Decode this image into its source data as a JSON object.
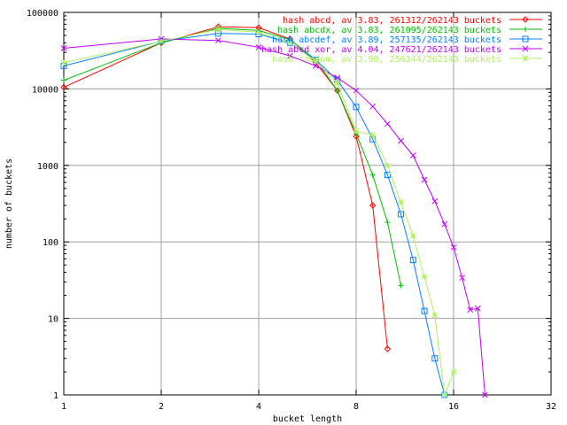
{
  "chart_data": {
    "type": "line",
    "xlabel": "bucket length",
    "ylabel": "number of buckets",
    "x_scale": "log2",
    "y_scale": "log10",
    "xlim": [
      1,
      32
    ],
    "ylim": [
      1,
      100000
    ],
    "x_ticks": [
      {
        "value": 1,
        "label": "1"
      },
      {
        "value": 2,
        "label": "2"
      },
      {
        "value": 4,
        "label": "4"
      },
      {
        "value": 8,
        "label": "8"
      },
      {
        "value": 16,
        "label": "16"
      },
      {
        "value": 32,
        "label": "32"
      }
    ],
    "y_ticks": [
      {
        "value": 1,
        "label": "1"
      },
      {
        "value": 10,
        "label": "10"
      },
      {
        "value": 100,
        "label": "100"
      },
      {
        "value": 1000,
        "label": "1000"
      },
      {
        "value": 10000,
        "label": "10000"
      },
      {
        "value": 100000,
        "label": "100000"
      }
    ],
    "grid": true,
    "legend_position": "top-right",
    "series": [
      {
        "name": "hash abcd, av 3.83, 261312/262143 buckets",
        "color": "#ff0000",
        "marker": "diamond",
        "x": [
          1,
          2,
          3,
          4,
          5,
          6,
          7,
          8,
          9,
          10
        ],
        "y": [
          10500,
          40000,
          65000,
          63000,
          45000,
          22000,
          9500,
          2400,
          300,
          4
        ]
      },
      {
        "name": "hash abcdx, av 3.83, 261095/262143 buckets",
        "color": "#00c000",
        "marker": "plus",
        "x": [
          1,
          2,
          3,
          4,
          5,
          6,
          7,
          8,
          9,
          10,
          11
        ],
        "y": [
          13000,
          40000,
          62000,
          58000,
          44000,
          24000,
          9500,
          2600,
          750,
          180,
          27
        ]
      },
      {
        "name": "hash abcdef, av 3.89, 257135/262143 buckets",
        "color": "#0080ff",
        "marker": "square",
        "x": [
          1,
          2,
          3,
          4,
          5,
          6,
          7,
          8,
          9,
          10,
          11,
          12,
          13,
          14,
          15
        ],
        "y": [
          20000,
          42000,
          53000,
          52000,
          40000,
          24000,
          13000,
          5800,
          2200,
          750,
          230,
          58,
          12.5,
          3,
          1
        ]
      },
      {
        "name": "hash abcd xor, av 4.04, 247621/262143 buckets",
        "color": "#c000ff",
        "marker": "cross",
        "x": [
          1,
          2,
          3,
          4,
          5,
          6,
          7,
          8,
          9,
          10,
          11,
          12,
          13,
          14,
          15,
          16,
          17,
          18,
          19,
          20
        ],
        "y": [
          34000,
          45000,
          43000,
          35000,
          27000,
          20000,
          14000,
          9500,
          5900,
          3500,
          2100,
          1350,
          650,
          340,
          170,
          85,
          34,
          13,
          13.5,
          1
        ]
      },
      {
        "name": "hash random, av 3.90, 256344/262143 buckets",
        "color": "#b0f060",
        "marker": "star",
        "x": [
          1,
          2,
          3,
          4,
          5,
          6,
          7,
          8,
          9,
          10,
          11,
          12,
          13,
          14,
          15,
          16
        ],
        "y": [
          22000,
          42000,
          60000,
          55000,
          40000,
          23000,
          12000,
          2800,
          2500,
          1000,
          330,
          120,
          35,
          11,
          1,
          2
        ]
      }
    ]
  }
}
